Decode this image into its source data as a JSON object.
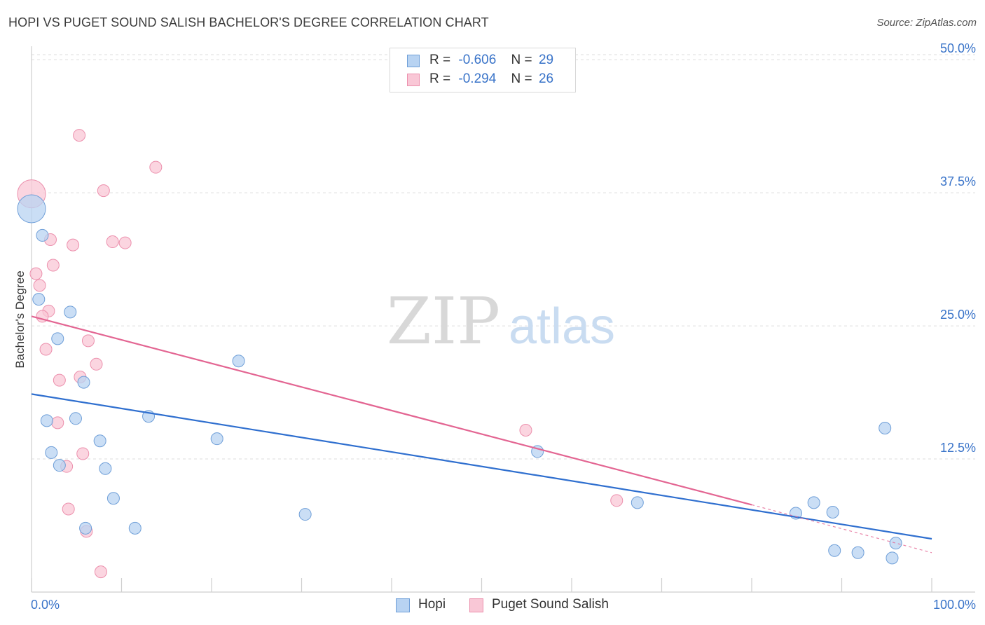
{
  "title": "HOPI VS PUGET SOUND SALISH BACHELOR'S DEGREE CORRELATION CHART",
  "source": "Source: ZipAtlas.com",
  "watermark": {
    "zip": "ZIP",
    "atlas": "atlas"
  },
  "legend_stats": [
    {
      "r_label": "R =",
      "r_value": "-0.606",
      "n_label": "N =",
      "n_value": "29"
    },
    {
      "r_label": "R =",
      "r_value": "-0.294",
      "n_label": "N =",
      "n_value": "26"
    }
  ],
  "colors": {
    "hopi_fill": "#b8d3f2",
    "hopi_stroke": "#6f9fd8",
    "hopi_line": "#2f6fcf",
    "salish_fill": "#f9c7d6",
    "salish_stroke": "#ec90ad",
    "salish_line": "#e36592",
    "axis_text": "#3a74c9",
    "grid": "#dedede"
  },
  "chart_data": {
    "type": "scatter",
    "title": "HOPI VS PUGET SOUND SALISH BACHELOR'S DEGREE CORRELATION CHART",
    "xlabel": "",
    "ylabel": "Bachelor's Degree",
    "xlim": [
      0,
      100
    ],
    "ylim": [
      0,
      51
    ],
    "x_tick_labels": [
      "0.0%",
      "100.0%"
    ],
    "y_ticks": [
      12.5,
      25.0,
      37.5,
      50.0
    ],
    "y_tick_labels": [
      "12.5%",
      "25.0%",
      "37.5%",
      "50.0%"
    ],
    "legend": [
      "Hopi",
      "Puget Sound Salish"
    ],
    "series": [
      {
        "name": "Hopi",
        "points": [
          {
            "x": 0.0,
            "y": 36.0,
            "big": true
          },
          {
            "x": 1.2,
            "y": 33.5
          },
          {
            "x": 0.8,
            "y": 27.5
          },
          {
            "x": 4.3,
            "y": 26.3
          },
          {
            "x": 2.9,
            "y": 23.8
          },
          {
            "x": 5.8,
            "y": 19.7
          },
          {
            "x": 23.0,
            "y": 21.7
          },
          {
            "x": 1.7,
            "y": 16.1
          },
          {
            "x": 4.9,
            "y": 16.3
          },
          {
            "x": 13.0,
            "y": 16.5
          },
          {
            "x": 7.6,
            "y": 14.2
          },
          {
            "x": 20.6,
            "y": 14.4
          },
          {
            "x": 2.2,
            "y": 13.1
          },
          {
            "x": 3.1,
            "y": 11.9
          },
          {
            "x": 8.2,
            "y": 11.6
          },
          {
            "x": 9.1,
            "y": 8.8
          },
          {
            "x": 6.0,
            "y": 6.0
          },
          {
            "x": 11.5,
            "y": 6.0
          },
          {
            "x": 30.4,
            "y": 7.3
          },
          {
            "x": 56.2,
            "y": 13.2
          },
          {
            "x": 67.3,
            "y": 8.4
          },
          {
            "x": 84.9,
            "y": 7.4
          },
          {
            "x": 86.9,
            "y": 8.4
          },
          {
            "x": 89.0,
            "y": 7.5
          },
          {
            "x": 89.2,
            "y": 3.9
          },
          {
            "x": 91.8,
            "y": 3.7
          },
          {
            "x": 95.6,
            "y": 3.2
          },
          {
            "x": 96.0,
            "y": 4.6
          },
          {
            "x": 94.8,
            "y": 15.4
          }
        ],
        "trend": {
          "x1": 0,
          "y1": 18.6,
          "x2": 100,
          "y2": 5.0
        }
      },
      {
        "name": "Puget Sound Salish",
        "points": [
          {
            "x": 0.0,
            "y": 37.4,
            "big": true
          },
          {
            "x": 5.3,
            "y": 42.9
          },
          {
            "x": 13.8,
            "y": 39.9
          },
          {
            "x": 8.0,
            "y": 37.7
          },
          {
            "x": 2.1,
            "y": 33.1
          },
          {
            "x": 4.6,
            "y": 32.6
          },
          {
            "x": 9.0,
            "y": 32.9
          },
          {
            "x": 10.4,
            "y": 32.8
          },
          {
            "x": 2.4,
            "y": 30.7
          },
          {
            "x": 0.5,
            "y": 29.9
          },
          {
            "x": 0.9,
            "y": 28.8
          },
          {
            "x": 1.9,
            "y": 26.4
          },
          {
            "x": 1.2,
            "y": 25.9
          },
          {
            "x": 6.3,
            "y": 23.6
          },
          {
            "x": 1.6,
            "y": 22.8
          },
          {
            "x": 7.2,
            "y": 21.4
          },
          {
            "x": 3.1,
            "y": 19.9
          },
          {
            "x": 5.4,
            "y": 20.2
          },
          {
            "x": 2.9,
            "y": 15.9
          },
          {
            "x": 5.7,
            "y": 13.0
          },
          {
            "x": 3.9,
            "y": 11.8
          },
          {
            "x": 4.1,
            "y": 7.8
          },
          {
            "x": 6.1,
            "y": 5.7
          },
          {
            "x": 7.7,
            "y": 1.9
          },
          {
            "x": 54.9,
            "y": 15.2
          },
          {
            "x": 65.0,
            "y": 8.6
          }
        ],
        "trend": {
          "x1": 0,
          "y1": 25.9,
          "x2": 80,
          "y2": 8.2
        },
        "trend_dashed": {
          "x1": 80,
          "y1": 8.2,
          "x2": 100,
          "y2": 3.7
        }
      }
    ]
  }
}
